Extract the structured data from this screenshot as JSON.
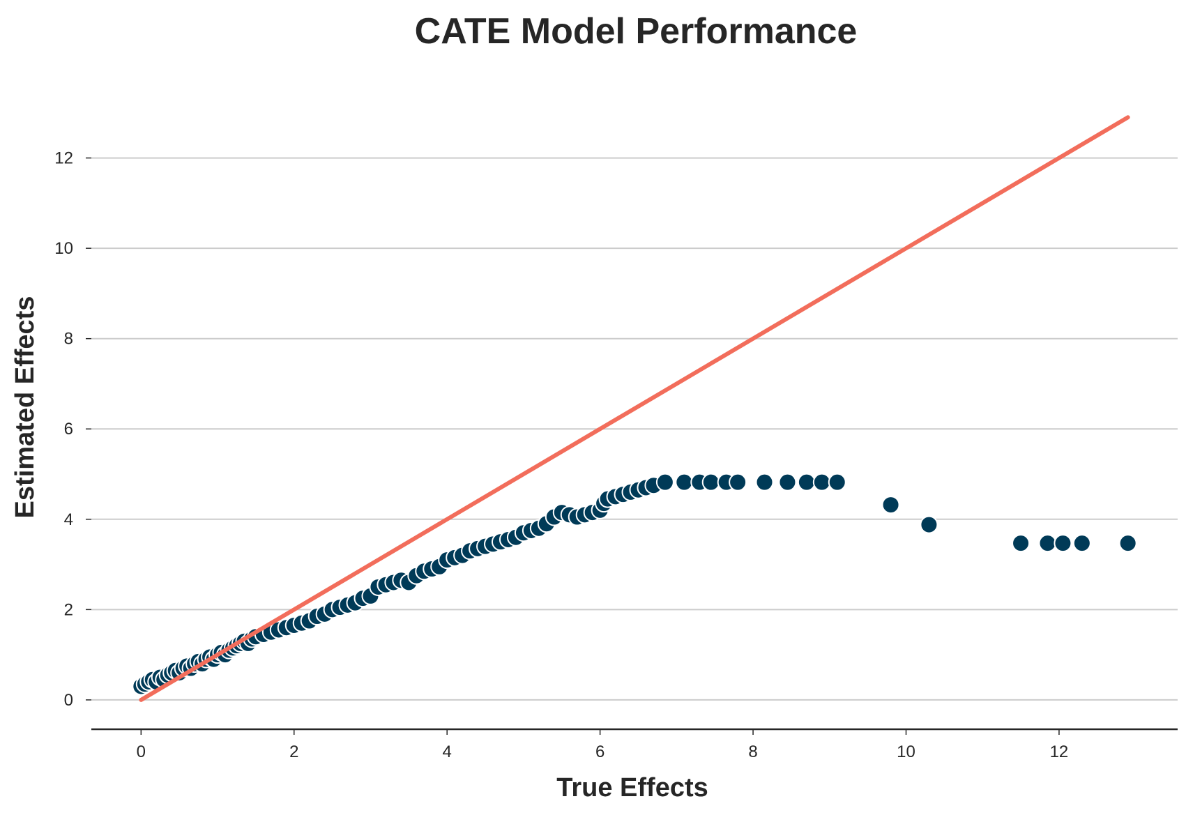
{
  "chart_data": {
    "type": "scatter",
    "title": "CATE Model Performance",
    "xlabel": "True Effects",
    "ylabel": "Estimated Effects",
    "xlim": [
      -0.65,
      13.55
    ],
    "ylim": [
      -0.65,
      13.8
    ],
    "xticks": [
      0,
      2,
      4,
      6,
      8,
      10,
      12
    ],
    "yticks": [
      0,
      2,
      4,
      6,
      8,
      10,
      12
    ],
    "grid": "horizontal",
    "legend": "none",
    "colors": {
      "points": "#003a57",
      "point_edge": "#ffffff",
      "reference_line": "#f26d5b"
    },
    "reference_line": {
      "x": [
        0,
        12.9
      ],
      "y": [
        0,
        12.9
      ]
    },
    "series": [
      {
        "x": [
          0.0,
          0.05,
          0.1,
          0.15,
          0.2,
          0.25,
          0.3,
          0.35,
          0.4,
          0.45,
          0.5,
          0.55,
          0.6,
          0.65,
          0.7,
          0.75,
          0.8,
          0.85,
          0.9,
          0.95,
          1.0,
          1.05,
          1.1,
          1.15,
          1.2,
          1.25,
          1.3,
          1.35,
          1.4,
          1.45,
          1.5,
          1.6,
          1.7,
          1.8,
          1.9,
          2.0,
          2.1,
          2.2,
          2.3,
          2.4,
          2.5,
          2.6,
          2.7,
          2.8,
          2.9,
          3.0,
          3.1,
          3.2,
          3.3,
          3.4,
          3.5,
          3.6,
          3.7,
          3.8,
          3.9,
          4.0,
          4.1,
          4.2,
          4.3,
          4.4,
          4.5,
          4.6,
          4.7,
          4.8,
          4.9,
          5.0,
          5.1,
          5.2,
          5.3,
          5.4,
          5.5,
          5.6,
          5.7,
          5.8,
          5.9,
          6.0,
          6.05,
          6.1,
          6.2,
          6.3,
          6.4,
          6.5,
          6.6,
          6.7,
          6.85,
          7.1,
          7.3,
          7.45,
          7.65,
          7.8,
          8.15,
          8.45,
          8.7,
          8.9,
          9.1,
          9.8,
          10.3,
          11.5,
          11.85,
          12.05,
          12.3,
          12.9
        ],
        "y": [
          0.3,
          0.35,
          0.4,
          0.45,
          0.4,
          0.5,
          0.45,
          0.55,
          0.6,
          0.65,
          0.6,
          0.7,
          0.75,
          0.7,
          0.8,
          0.85,
          0.8,
          0.9,
          0.95,
          0.9,
          1.0,
          1.05,
          1.0,
          1.1,
          1.15,
          1.2,
          1.25,
          1.3,
          1.25,
          1.35,
          1.4,
          1.45,
          1.5,
          1.55,
          1.6,
          1.65,
          1.7,
          1.75,
          1.85,
          1.9,
          2.0,
          2.05,
          2.1,
          2.15,
          2.25,
          2.3,
          2.5,
          2.55,
          2.6,
          2.65,
          2.6,
          2.75,
          2.85,
          2.9,
          2.95,
          3.1,
          3.15,
          3.2,
          3.3,
          3.35,
          3.4,
          3.45,
          3.5,
          3.55,
          3.6,
          3.7,
          3.75,
          3.8,
          3.9,
          4.05,
          4.15,
          4.1,
          4.05,
          4.1,
          4.15,
          4.2,
          4.35,
          4.45,
          4.5,
          4.55,
          4.6,
          4.65,
          4.7,
          4.75,
          4.82,
          4.82,
          4.82,
          4.82,
          4.82,
          4.82,
          4.82,
          4.82,
          4.82,
          4.82,
          4.82,
          4.32,
          3.88,
          3.47,
          3.47,
          3.47,
          3.47,
          3.47
        ]
      }
    ]
  }
}
